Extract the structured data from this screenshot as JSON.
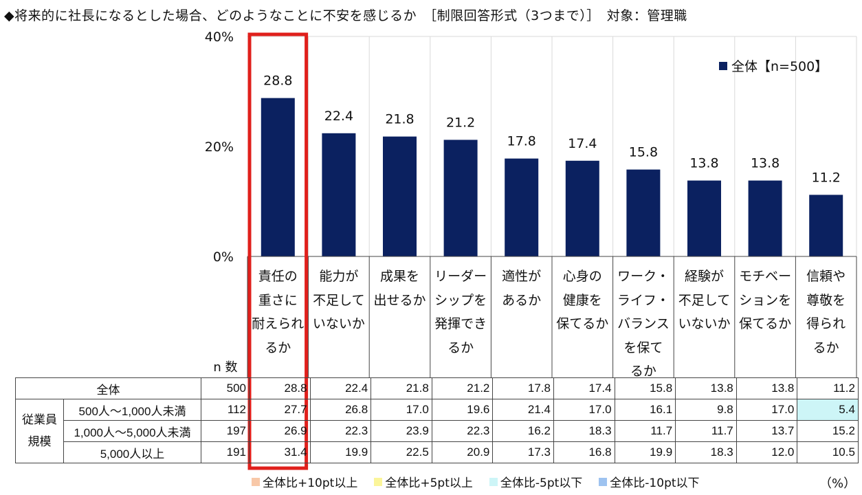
{
  "title": "◆将来的に社長になるとした場合、どのようなことに不安を感じるか　［制限回答形式（3つまで）］　対象：管理職",
  "legend_label": "全体【n=500】",
  "colors": {
    "bar": "#0b2160",
    "highlight_box": "#e0201c",
    "grid": "#d9d9d9"
  },
  "chart_data": {
    "type": "bar",
    "title": "将来的に社長になるとした場合、どのようなことに不安を感じるか",
    "ylabel": "",
    "ylim": [
      0,
      40
    ],
    "yticks": [
      "0%",
      "20%",
      "40%"
    ],
    "ytick_values": [
      0,
      20,
      40
    ],
    "categories": [
      "責任の\n重さに\n耐えられ\nるか",
      "能力が\n不足して\nいないか",
      "成果を\n出せるか",
      "リーダー\nシップを\n発揮でき\nるか",
      "適性が\nあるか",
      "心身の\n健康を\n保てるか",
      "ワーク・\nライフ・\nバランス\nを保て\nるか",
      "経験が\n不足して\nいないか",
      "モチベー\nションを\n保てるか",
      "信頼や\n尊敬を\n得られ\nるか"
    ],
    "series": [
      {
        "name": "全体【n=500】",
        "values": [
          28.8,
          22.4,
          21.8,
          21.2,
          17.8,
          17.4,
          15.8,
          13.8,
          13.8,
          11.2
        ]
      }
    ],
    "value_labels": [
      "28.8",
      "22.4",
      "21.8",
      "21.2",
      "17.8",
      "17.4",
      "15.8",
      "13.8",
      "13.8",
      "11.2"
    ]
  },
  "table": {
    "n_header": "n 数",
    "group_label": "従業員\n規模",
    "rows": [
      {
        "label": "全体",
        "n": "500",
        "values": [
          "28.8",
          "22.4",
          "21.8",
          "21.2",
          "17.8",
          "17.4",
          "15.8",
          "13.8",
          "13.8",
          "11.2"
        ]
      },
      {
        "label": "500人～1,000人未満",
        "n": "112",
        "values": [
          "27.7",
          "26.8",
          "17.0",
          "19.6",
          "21.4",
          "17.0",
          "16.1",
          "9.8",
          "17.0",
          "5.4"
        ]
      },
      {
        "label": "1,000人～5,000人未満",
        "n": "197",
        "values": [
          "26.9",
          "22.3",
          "23.9",
          "22.3",
          "16.2",
          "18.3",
          "11.7",
          "11.7",
          "13.7",
          "15.2"
        ]
      },
      {
        "label": "5,000人以上",
        "n": "191",
        "values": [
          "31.4",
          "19.9",
          "22.5",
          "20.9",
          "17.3",
          "16.8",
          "19.9",
          "18.3",
          "12.0",
          "10.5"
        ]
      }
    ],
    "highlights": [
      {
        "row": 1,
        "col": 9,
        "color": "#cdf5f7"
      }
    ]
  },
  "bottom_legend": [
    {
      "label": "全体比+10pt以上",
      "color": "#f8c8a8"
    },
    {
      "label": "全体比+5pt以上",
      "color": "#fbf59a"
    },
    {
      "label": "全体比-5pt以下",
      "color": "#cdf5f7"
    },
    {
      "label": "全体比-10pt以下",
      "color": "#9ec3f0"
    }
  ],
  "unit_label": "（%）"
}
